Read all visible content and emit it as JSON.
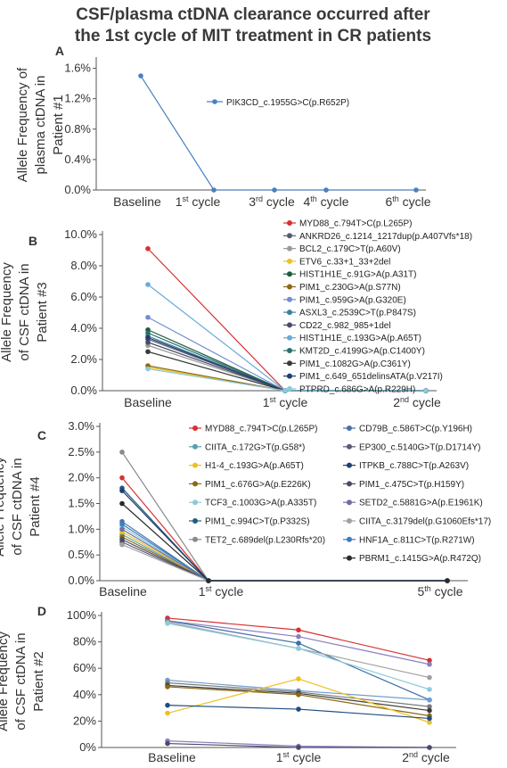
{
  "figure_title": [
    "CSF/plasma ctDNA clearance occurred after",
    "the 1st cycle of MIT treatment in CR patients"
  ],
  "chart_data": [
    {
      "panel": "A",
      "type": "line",
      "ylabel": [
        "Allele Frequency of",
        "plasma ctDNA in",
        "Patient #1"
      ],
      "categories": [
        "Baseline",
        "1st cycle",
        "3rd cycle",
        "4th cycle",
        "6th cycle"
      ],
      "yticks": [
        "0.0%",
        "0.4%",
        "0.8%",
        "1.2%",
        "1.6%"
      ],
      "ylim": [
        0,
        1.7
      ],
      "series": [
        {
          "name": "PIK3CD_c.1955G>C(p.R652P)",
          "color": "#4a7fbf",
          "values": [
            1.5,
            0,
            0,
            0,
            0
          ]
        }
      ]
    },
    {
      "panel": "B",
      "type": "line",
      "ylabel": [
        "Allele Frequency",
        "of CSF ctDNA in",
        "Patient #3"
      ],
      "categories": [
        "Baseline",
        "1st cycle",
        "2nd cycle"
      ],
      "yticks": [
        "0.0%",
        "2.0%",
        "4.0%",
        "6.0%",
        "8.0%",
        "10.0%"
      ],
      "ylim": [
        0,
        10
      ],
      "series": [
        {
          "name": "MYD88_c.794T>C(p.L265P)",
          "color": "#d93030",
          "values": [
            9.1,
            0,
            0
          ]
        },
        {
          "name": "ANKRD26_c.1214_1217dup(p.A407Vfs*18)",
          "color": "#555b6e",
          "values": [
            3.3,
            0,
            0
          ]
        },
        {
          "name": "BCL2_c.179C>T(p.A60V)",
          "color": "#9a9a9a",
          "values": [
            2.9,
            0,
            0
          ]
        },
        {
          "name": "ETV6_c.33+1_33+2del",
          "color": "#f0c020",
          "values": [
            1.5,
            0,
            0
          ]
        },
        {
          "name": "HIST1H1E_c.91G>A(p.A31T)",
          "color": "#1f5c3f",
          "values": [
            3.9,
            0,
            0
          ]
        },
        {
          "name": "PIM1_c.230G>A(p.S77N)",
          "color": "#8b6914",
          "values": [
            1.6,
            0,
            0
          ]
        },
        {
          "name": "PIM1_c.959G>A(p.G320E)",
          "color": "#6f8fcf",
          "values": [
            4.7,
            0,
            0
          ]
        },
        {
          "name": "ASXL3_c.2539C>T(p.P847S)",
          "color": "#3e7fa0",
          "values": [
            3.5,
            0,
            0
          ]
        },
        {
          "name": "CD22_c.982_985+1del",
          "color": "#4a4a68",
          "values": [
            3.1,
            0,
            0
          ]
        },
        {
          "name": "HIST1H1E_c.193G>A(p.A65T)",
          "color": "#69a9d9",
          "values": [
            6.8,
            0,
            0
          ]
        },
        {
          "name": "KMT2D_c.4199G>A(p.C1400Y)",
          "color": "#2a6f6f",
          "values": [
            3.7,
            0,
            0
          ]
        },
        {
          "name": "PIM1_c.1082G>A(p.C361Y)",
          "color": "#3a3a3a",
          "values": [
            2.5,
            0,
            0
          ]
        },
        {
          "name": "PIM1_c.649_651delinsATA(p.V217I)",
          "color": "#1f3f6f",
          "values": [
            3.4,
            0,
            0
          ]
        },
        {
          "name": "PTPRD_c.686G>A(p.R229H)",
          "color": "#8fc9d9",
          "values": [
            1.4,
            0,
            0
          ]
        }
      ]
    },
    {
      "panel": "C",
      "type": "line",
      "ylabel": [
        "Allele Frequency",
        "of CSF ctDNA in",
        "Patient #4"
      ],
      "categories": [
        "Baseline",
        "1st cycle",
        "5th cycle"
      ],
      "yticks": [
        "0.0%",
        "0.5%",
        "1.0%",
        "1.5%",
        "2.0%",
        "2.5%",
        "3.0%"
      ],
      "ylim": [
        0,
        3.0
      ],
      "series": [
        {
          "name": "MYD88_c.794T>C(p.L265P)",
          "color": "#d93030",
          "values": [
            2.0,
            0,
            0
          ]
        },
        {
          "name": "CIITA_c.172G>T(p.G58*)",
          "color": "#5aa0b0",
          "values": [
            0.9,
            0,
            0
          ]
        },
        {
          "name": "H1-4_c.193G>A(p.A65T)",
          "color": "#f0c020",
          "values": [
            0.95,
            0,
            0
          ]
        },
        {
          "name": "PIM1_c.676G>A(p.E226K)",
          "color": "#8b6914",
          "values": [
            0.85,
            0,
            0
          ]
        },
        {
          "name": "TCF3_c.1003G>A(p.A335T)",
          "color": "#8fc9d9",
          "values": [
            1.05,
            0,
            0
          ]
        },
        {
          "name": "PIM1_c.994C>T(p.P332S)",
          "color": "#1f5c7f",
          "values": [
            1.8,
            0,
            0
          ]
        },
        {
          "name": "TET2_c.689del(p.L230Rfs*20)",
          "color": "#8a8a8a",
          "values": [
            2.5,
            0,
            0
          ]
        },
        {
          "name": "CD79B_c.586T>C(p.Y196H)",
          "color": "#4a6fb0",
          "values": [
            1.15,
            0,
            0
          ]
        },
        {
          "name": "EP300_c.5140G>T(p.D1714Y)",
          "color": "#5a5a7a",
          "values": [
            0.75,
            0,
            0
          ]
        },
        {
          "name": "ITPKB_c.788C>T(p.A263V)",
          "color": "#1f3f6f",
          "values": [
            1.75,
            0,
            0
          ]
        },
        {
          "name": "PIM1_c.475C>T(p.H159Y)",
          "color": "#4a4a68",
          "values": [
            0.8,
            0,
            0
          ]
        },
        {
          "name": "SETD2_c.5881G>A(p.E1961K)",
          "color": "#6f6fa0",
          "values": [
            1.0,
            0,
            0
          ]
        },
        {
          "name": "CIITA_c.3179del(p.G1060Efs*17)",
          "color": "#a0a0a0",
          "values": [
            0.7,
            0,
            0
          ]
        },
        {
          "name": "HNF1A_c.811C>T(p.R271W)",
          "color": "#3a7fbf",
          "values": [
            1.1,
            0,
            0
          ]
        },
        {
          "name": "PBRM1_c.1415G>A(p.R472Q)",
          "color": "#2a2a2a",
          "values": [
            1.5,
            0,
            0
          ]
        }
      ]
    },
    {
      "panel": "D",
      "type": "line",
      "ylabel": [
        "Allele Frequency",
        "of CSF ctDNA in",
        "Patient #2"
      ],
      "categories": [
        "Baseline",
        "1st cycle",
        "2nd cycle"
      ],
      "yticks": [
        "0%",
        "20%",
        "40%",
        "60%",
        "80%",
        "100%"
      ],
      "ylim": [
        0,
        100
      ],
      "series": [
        {
          "values": [
            98,
            89,
            66
          ],
          "color": "#d93030"
        },
        {
          "values": [
            96,
            84,
            63
          ],
          "color": "#8a7fbf"
        },
        {
          "values": [
            96,
            79,
            36
          ],
          "color": "#3a6fa8"
        },
        {
          "values": [
            95,
            75,
            53
          ],
          "color": "#a0a0a0"
        },
        {
          "values": [
            94,
            75,
            44
          ],
          "color": "#8fc9d9"
        },
        {
          "values": [
            51,
            43,
            36
          ],
          "color": "#6f9fcf"
        },
        {
          "values": [
            49,
            42,
            31
          ],
          "color": "#7a7a7a"
        },
        {
          "values": [
            47,
            41,
            28
          ],
          "color": "#3a3a3a"
        },
        {
          "values": [
            46,
            40,
            24
          ],
          "color": "#8b6914"
        },
        {
          "values": [
            26,
            52,
            19
          ],
          "color": "#f0c020"
        },
        {
          "values": [
            32,
            29,
            22
          ],
          "color": "#1f4f7f"
        },
        {
          "values": [
            5,
            1,
            0
          ],
          "color": "#8a7fbf"
        },
        {
          "values": [
            3,
            0,
            0
          ],
          "color": "#4a4a68"
        }
      ]
    }
  ]
}
